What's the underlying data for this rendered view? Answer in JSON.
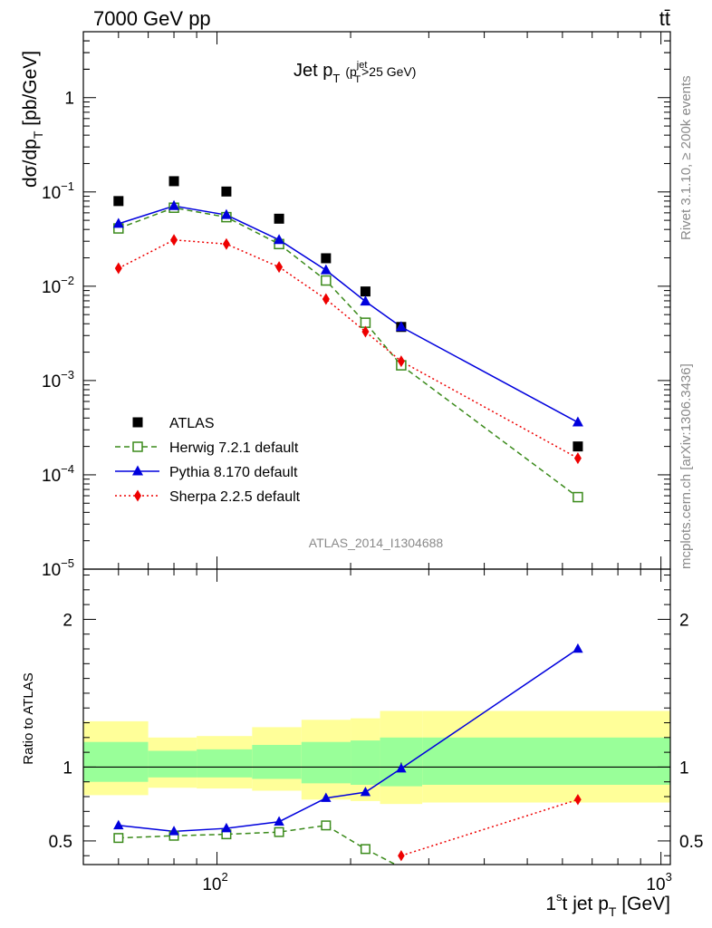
{
  "header": {
    "left": "7000 GeV pp",
    "right": "tt̄"
  },
  "side_text": {
    "rivet": "Rivet 3.1.10, ≥ 200k events",
    "mcplots": "mcplots.cern.ch [arXiv:1306.3436]"
  },
  "colors": {
    "atlas": "#000000",
    "herwig": "#3a8a1a",
    "pythia": "#0000dd",
    "sherpa": "#ee0000",
    "band_inner": "#99ff99",
    "band_outer": "#ffff99"
  },
  "chart_data": [
    {
      "type": "scatter",
      "title": "Jet p_T (p_T^jet>25 GeV)",
      "title_parts": {
        "main": "Jet p",
        "sub": "T",
        "cond_open": "(p",
        "cond_sup": "jet",
        "cond_sub": "T",
        "cond_rest": ">25 GeV)"
      },
      "ylabel": "dσ/dp_T [pb/GeV]",
      "ylabel_parts": {
        "main": "dσ/dp",
        "sub": "T",
        "rest": " [pb/GeV]"
      },
      "xscale": "log",
      "yscale": "log",
      "xlim": [
        50,
        1050
      ],
      "ylim": [
        1e-05,
        5
      ],
      "yticks": [
        {
          "value": 1,
          "base": "1",
          "exp": ""
        },
        {
          "value": 0.1,
          "base": "10",
          "exp": "−1"
        },
        {
          "value": 0.01,
          "base": "10",
          "exp": "−2"
        },
        {
          "value": 0.001,
          "base": "10",
          "exp": "−3"
        },
        {
          "value": 0.0001,
          "base": "10",
          "exp": "−4"
        },
        {
          "value": 1e-05,
          "base": "10",
          "exp": "−5"
        }
      ],
      "annotation": "ATLAS_2014_I1304688",
      "legend_position": "bottom-left",
      "x": [
        60,
        80,
        105,
        138,
        176,
        216,
        260,
        650
      ],
      "series": [
        {
          "name": "ATLAS",
          "style": "square",
          "color": "#000000",
          "values": [
            0.08,
            0.13,
            0.101,
            0.052,
            0.0198,
            0.0088,
            0.0037,
            0.0002
          ]
        },
        {
          "name": "Herwig 7.2.1 default",
          "style": "open-square-dashed",
          "color": "#3a8a1a",
          "values": [
            0.041,
            0.068,
            0.054,
            0.028,
            0.0115,
            0.0041,
            0.00145,
            5.8e-05
          ]
        },
        {
          "name": "Pythia 8.170 default",
          "style": "triangle-solid",
          "color": "#0000dd",
          "values": [
            0.046,
            0.071,
            0.057,
            0.031,
            0.0148,
            0.0069,
            0.0037,
            0.00036
          ]
        },
        {
          "name": "Sherpa 2.2.5 default",
          "style": "diamond-dotted",
          "color": "#ee0000",
          "values": [
            0.0155,
            0.031,
            0.028,
            0.016,
            0.0073,
            0.0033,
            0.0016,
            0.00015
          ]
        }
      ]
    },
    {
      "type": "line",
      "ylabel": "Ratio to ATLAS",
      "xlabel": "1st jet p_T [GeV]",
      "xlabel_parts": {
        "a": "1",
        "sup": "s",
        "b": "t jet p",
        "sub": "T",
        "rest": " [GeV]"
      },
      "xscale": "log",
      "xlim": [
        50,
        1050
      ],
      "ylim": [
        0.34,
        2.34
      ],
      "xticks": [
        {
          "value": 100,
          "base": "10",
          "exp": "2"
        },
        {
          "value": 1000,
          "base": "10",
          "exp": "3"
        }
      ],
      "yticks": [
        {
          "value": 0.5,
          "label": "0.5"
        },
        {
          "value": 1,
          "label": "1"
        },
        {
          "value": 2,
          "label": "2"
        }
      ],
      "bands": {
        "edges": [
          50,
          70,
          90,
          120,
          155,
          200,
          233,
          290,
          1050
        ],
        "outer_low": [
          0.81,
          0.86,
          0.855,
          0.84,
          0.78,
          0.77,
          0.75,
          0.76
        ],
        "outer_high": [
          1.31,
          1.2,
          1.21,
          1.27,
          1.32,
          1.33,
          1.38,
          1.38
        ],
        "inner_low": [
          0.9,
          0.93,
          0.93,
          0.92,
          0.89,
          0.88,
          0.87,
          0.88
        ],
        "inner_high": [
          1.17,
          1.11,
          1.12,
          1.15,
          1.17,
          1.18,
          1.2,
          1.2
        ]
      },
      "x": [
        60,
        80,
        105,
        138,
        176,
        216,
        260,
        650
      ],
      "series": [
        {
          "name": "Herwig 7.2.1 default",
          "style": "open-square-dashed",
          "color": "#3a8a1a",
          "values": [
            0.52,
            0.535,
            0.545,
            0.56,
            0.605,
            0.445,
            0.32,
            null
          ]
        },
        {
          "name": "Pythia 8.170 default",
          "style": "triangle-solid",
          "color": "#0000dd",
          "values": [
            0.605,
            0.565,
            0.585,
            0.63,
            0.79,
            0.83,
            0.99,
            1.8
          ]
        },
        {
          "name": "Sherpa 2.2.5 default",
          "style": "diamond-dotted",
          "color": "#ee0000",
          "values": [
            null,
            null,
            null,
            null,
            null,
            null,
            0.4,
            0.78
          ]
        }
      ]
    }
  ]
}
